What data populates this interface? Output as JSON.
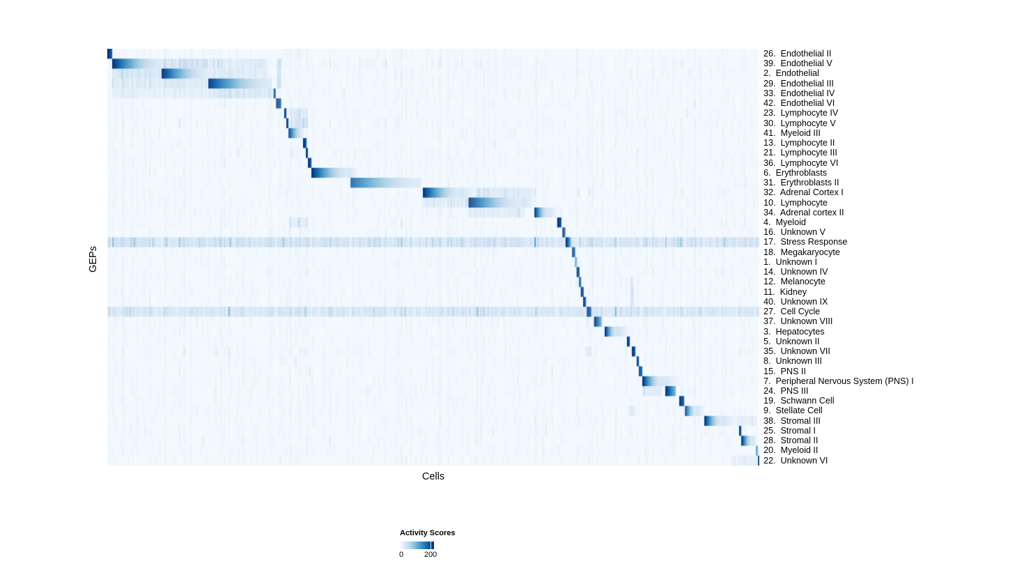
{
  "chart_data": {
    "type": "heatmap",
    "xlabel": "Cells",
    "ylabel": "GEPs",
    "value_range": [
      0,
      200
    ],
    "legend": {
      "title": "Activity Scores",
      "tick_labels": [
        "0",
        "200"
      ],
      "tick_values": [
        0,
        200
      ],
      "tick_position_fraction": 0.896,
      "position": "bottom-left"
    },
    "colormap": {
      "name": "Blues",
      "low": "#f7fbff",
      "high": "#08306b",
      "stops": [
        "#f7fbff",
        "#deebf7",
        "#c6dbef",
        "#9ecae1",
        "#6baed6",
        "#4292c6",
        "#2171b5",
        "#08519c",
        "#08306b"
      ]
    },
    "n_rows": 42,
    "rows": [
      {
        "label": "26.  Endothelial II",
        "blocks": [
          [
            0.0,
            0.0069,
            1.0
          ]
        ],
        "bands": []
      },
      {
        "label": "39.  Endothelial V",
        "blocks": [
          [
            0.0075,
            0.0829,
            1.0
          ]
        ],
        "bands": [
          [
            0.0834,
            0.154,
            0.3
          ],
          [
            0.155,
            0.245,
            0.2
          ],
          [
            0.259,
            0.266,
            0.32
          ],
          [
            0.313,
            0.43,
            0.14
          ],
          [
            0.485,
            0.64,
            0.12
          ],
          [
            0.7,
            0.76,
            0.09
          ],
          [
            0.83,
            0.95,
            0.11
          ]
        ]
      },
      {
        "label": "2.  Endothelial",
        "blocks": [
          [
            0.0834,
            0.1539,
            1.0
          ]
        ],
        "bands": [
          [
            0.0075,
            0.0829,
            0.26
          ],
          [
            0.155,
            0.245,
            0.2
          ],
          [
            0.259,
            0.266,
            0.28
          ],
          [
            0.313,
            0.43,
            0.12
          ],
          [
            0.485,
            0.57,
            0.1
          ],
          [
            0.83,
            0.95,
            0.09
          ]
        ]
      },
      {
        "label": "29.  Endothelial III",
        "blocks": [
          [
            0.155,
            0.252,
            0.97
          ]
        ],
        "bands": [
          [
            0.0075,
            0.0829,
            0.2
          ],
          [
            0.0834,
            0.154,
            0.24
          ],
          [
            0.259,
            0.266,
            0.27
          ],
          [
            0.44,
            0.52,
            0.09
          ],
          [
            0.83,
            0.95,
            0.09
          ]
        ]
      },
      {
        "label": "33.  Endothelial IV",
        "blocks": [
          [
            0.255,
            0.258,
            0.88
          ]
        ],
        "bands": [
          [
            0.0075,
            0.154,
            0.16
          ],
          [
            0.155,
            0.252,
            0.24
          ],
          [
            0.83,
            0.95,
            0.08
          ]
        ]
      },
      {
        "label": "42.  Endothelial VI",
        "blocks": [
          [
            0.259,
            0.2655,
            1.0
          ]
        ],
        "bands": [
          [
            0.278,
            0.306,
            0.08
          ]
        ]
      },
      {
        "label": "23.  Lymphocyte IV",
        "blocks": [
          [
            0.2714,
            0.2746,
            1.0
          ]
        ],
        "bands": [
          [
            0.278,
            0.306,
            0.2
          ]
        ]
      },
      {
        "label": "30.  Lymphocyte V",
        "blocks": [
          [
            0.2746,
            0.2778,
            1.0
          ]
        ],
        "bands": [
          [
            0.28,
            0.306,
            0.25
          ]
        ]
      },
      {
        "label": "41.  Myeloid III",
        "blocks": [
          [
            0.278,
            0.3,
            1.0
          ]
        ],
        "bands": [
          [
            0.0834,
            0.154,
            0.07
          ]
        ]
      },
      {
        "label": "13.  Lymphocyte II",
        "blocks": [
          [
            0.3002,
            0.3045,
            1.0
          ]
        ],
        "bands": []
      },
      {
        "label": "21.  Lymphocyte III",
        "blocks": [
          [
            0.3045,
            0.3077,
            1.0
          ]
        ],
        "bands": []
      },
      {
        "label": "36.  Lymphocyte VI",
        "blocks": [
          [
            0.3077,
            0.312,
            1.0
          ]
        ],
        "bands": []
      },
      {
        "label": "6.  Erythroblasts",
        "blocks": [
          [
            0.313,
            0.37,
            1.0,
            0.385
          ]
        ],
        "bands": []
      },
      {
        "label": "31.  Erythroblasts II",
        "blocks": [
          [
            0.3731,
            0.48,
            0.82
          ]
        ],
        "bands": []
      },
      {
        "label": "32.  Adrenal Cortex I",
        "blocks": [
          [
            0.484,
            0.541,
            1.0,
            0.565
          ]
        ],
        "bands": [
          [
            0.565,
            0.658,
            0.22
          ],
          [
            0.7,
            0.77,
            0.13
          ],
          [
            0.8,
            0.95,
            0.11
          ]
        ]
      },
      {
        "label": "10.  Lymphocyte",
        "blocks": [
          [
            0.554,
            0.637,
            1.0,
            0.658
          ]
        ],
        "bands": [
          [
            0.484,
            0.552,
            0.2
          ],
          [
            0.8,
            0.95,
            0.09
          ]
        ]
      },
      {
        "label": "34.  Adrenal cortex II",
        "blocks": [
          [
            0.655,
            0.677,
            1.0,
            0.69
          ]
        ],
        "bands": [
          [
            0.484,
            0.552,
            0.14
          ],
          [
            0.554,
            0.64,
            0.18
          ]
        ]
      },
      {
        "label": "4.  Myeloid",
        "blocks": [
          [
            0.69,
            0.6955,
            1.0
          ]
        ],
        "bands": [
          [
            0.278,
            0.306,
            0.16
          ]
        ]
      },
      {
        "label": "16.  Unknown V",
        "blocks": [
          [
            0.698,
            0.702,
            1.0
          ]
        ],
        "bands": [
          [
            0.278,
            0.306,
            0.1
          ]
        ]
      },
      {
        "label": "17.  Stress Response",
        "blocks": [
          [
            0.703,
            0.711,
            1.0,
            0.722
          ]
        ],
        "bands": [
          [
            0.0,
            1.0,
            0.3
          ]
        ]
      },
      {
        "label": "18.  Megakaryocyte",
        "blocks": [
          [
            0.713,
            0.7168,
            1.0
          ]
        ],
        "bands": []
      },
      {
        "label": "1.  Unknown I",
        "blocks": [
          [
            0.7172,
            0.7195,
            0.55
          ]
        ],
        "bands": []
      },
      {
        "label": "14.  Unknown IV",
        "blocks": [
          [
            0.7198,
            0.7232,
            1.0
          ]
        ],
        "bands": []
      },
      {
        "label": "12.  Melanocyte",
        "blocks": [
          [
            0.7235,
            0.7262,
            0.9
          ]
        ],
        "bands": [
          [
            0.803,
            0.808,
            0.22
          ]
        ]
      },
      {
        "label": "11.  Kidney",
        "blocks": [
          [
            0.7262,
            0.7296,
            1.0
          ]
        ],
        "bands": [
          [
            0.803,
            0.808,
            0.3
          ]
        ]
      },
      {
        "label": "40.  Unknown IX",
        "blocks": [
          [
            0.7298,
            0.734,
            1.0
          ]
        ],
        "bands": [
          [
            0.803,
            0.808,
            0.22
          ]
        ]
      },
      {
        "label": "27.  Cell Cycle",
        "blocks": [
          [
            0.7355,
            0.7415,
            1.0
          ]
        ],
        "bands": [
          [
            0.0,
            1.0,
            0.27
          ]
        ]
      },
      {
        "label": "37.  Unknown VIII",
        "blocks": [
          [
            0.7465,
            0.7575,
            1.0
          ]
        ],
        "bands": []
      },
      {
        "label": "3.  Hepatocytes",
        "blocks": [
          [
            0.7628,
            0.781,
            1.0,
            0.8
          ]
        ],
        "bands": []
      },
      {
        "label": "5.  Unknown II",
        "blocks": [
          [
            0.797,
            0.8005,
            1.0
          ]
        ],
        "bands": []
      },
      {
        "label": "35.  Unknown VII",
        "blocks": [
          [
            0.8045,
            0.8098,
            1.0
          ]
        ],
        "bands": [
          [
            0.733,
            0.744,
            0.18
          ]
        ]
      },
      {
        "label": "8.  Unknown III",
        "blocks": [
          [
            0.812,
            0.8152,
            1.0
          ]
        ],
        "bands": []
      },
      {
        "label": "15.  PNS II",
        "blocks": [
          [
            0.8152,
            0.8195,
            0.9
          ]
        ],
        "bands": []
      },
      {
        "label": "7.  Peripheral Nervous System (PNS) I",
        "blocks": [
          [
            0.8205,
            0.85,
            1.0,
            0.875
          ]
        ],
        "bands": [
          [
            0.856,
            0.876,
            0.26
          ]
        ]
      },
      {
        "label": "24.  PNS III",
        "blocks": [
          [
            0.8558,
            0.8718,
            1.0
          ]
        ],
        "bands": [
          [
            0.8205,
            0.85,
            0.2
          ],
          [
            0.877,
            0.884,
            0.15
          ]
        ]
      },
      {
        "label": "19.  Schwann Cell",
        "blocks": [
          [
            0.8772,
            0.884,
            1.0
          ]
        ],
        "bands": []
      },
      {
        "label": "9.  Stellate Cell",
        "blocks": [
          [
            0.886,
            0.904,
            1.0,
            0.915
          ]
        ],
        "bands": [
          [
            0.8,
            0.81,
            0.2
          ]
        ]
      },
      {
        "label": "38.  Stromal III",
        "blocks": [
          [
            0.9156,
            0.942,
            1.0,
            0.9647
          ]
        ],
        "bands": [
          [
            0.7,
            0.73,
            0.14
          ],
          [
            0.965,
            0.995,
            0.18
          ]
        ]
      },
      {
        "label": "25.  Stromal I",
        "blocks": [
          [
            0.969,
            0.9722,
            1.0
          ]
        ],
        "bands": [
          [
            0.916,
            0.964,
            0.13
          ]
        ]
      },
      {
        "label": "28.  Stromal II",
        "blocks": [
          [
            0.9722,
            0.9893,
            1.0,
            0.9947
          ]
        ],
        "bands": []
      },
      {
        "label": "20.  Myeloid II",
        "blocks": [
          [
            0.9947,
            0.9979,
            0.55
          ]
        ],
        "bands": []
      },
      {
        "label": "22.  Unknown VI",
        "blocks": [
          [
            0.9979,
            1.0,
            1.0
          ]
        ],
        "bands": [
          [
            0.958,
            0.996,
            0.17
          ]
        ]
      }
    ],
    "gaps": [
      0.0071,
      0.0831,
      0.1545,
      0.2585,
      0.3124,
      0.3726,
      0.4824,
      0.553,
      0.6535,
      0.689,
      0.762,
      0.819,
      0.8553,
      0.8857,
      0.915,
      0.9647
    ],
    "noise": {
      "seed": 7,
      "column_count": 420,
      "base_level": 0.1
    }
  }
}
